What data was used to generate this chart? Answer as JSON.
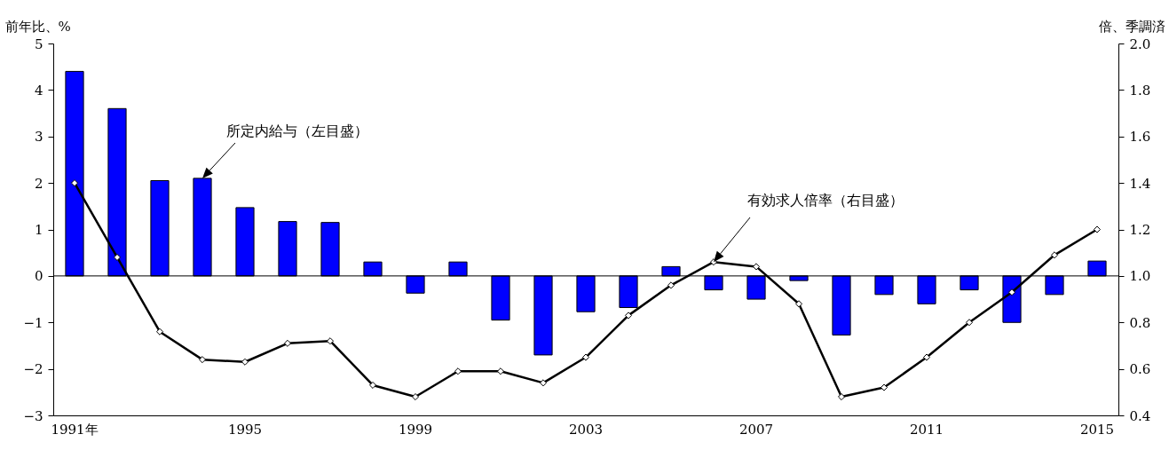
{
  "chart_data": {
    "type": "bar",
    "categories": [
      "1991年",
      null,
      null,
      null,
      "1995",
      null,
      null,
      null,
      "1999",
      null,
      null,
      null,
      "2003",
      null,
      null,
      null,
      "2007",
      null,
      null,
      null,
      "2011",
      null,
      null,
      null,
      "2015"
    ],
    "series": [
      {
        "name": "所定内給与（左目盛）",
        "color": "#0000ff",
        "values": [
          4.4,
          3.6,
          2.05,
          2.1,
          1.47,
          1.17,
          1.15,
          0.3,
          -0.37,
          0.3,
          -0.95,
          -1.7,
          -0.77,
          -0.68,
          0.2,
          -0.3,
          -0.5,
          -0.1,
          -1.27,
          -0.4,
          -0.6,
          -0.3,
          -1.0,
          -0.4,
          0.32
        ]
      },
      {
        "name": "有効求人倍率（右目盛）",
        "type": "line",
        "axis": "y2",
        "color": "#000000",
        "values": [
          1.4,
          1.08,
          0.76,
          0.64,
          0.63,
          0.71,
          0.72,
          0.53,
          0.48,
          0.59,
          0.59,
          0.54,
          0.65,
          0.83,
          0.96,
          1.06,
          1.04,
          0.88,
          0.48,
          0.52,
          0.65,
          0.8,
          0.93,
          1.09,
          1.2
        ]
      }
    ],
    "ylabel": "前年比、%",
    "y2label": "倍、季調済",
    "ylim": [
      -3,
      5
    ],
    "yticks": [
      -3,
      -2,
      -1,
      0,
      1,
      2,
      3,
      4,
      5
    ],
    "y2lim": [
      0.4,
      2.0
    ],
    "y2ticks": [
      0.4,
      0.6,
      0.8,
      {
        "value": 1,
        "label": "1.0"
      },
      1.2,
      1.4,
      1.6,
      1.8,
      {
        "value": 2,
        "label": "2.0"
      }
    ],
    "ref_lines": [
      {
        "axis": "y",
        "value": 0,
        "color": "#000000"
      }
    ],
    "marker": "diamond",
    "line_style": "solid"
  }
}
